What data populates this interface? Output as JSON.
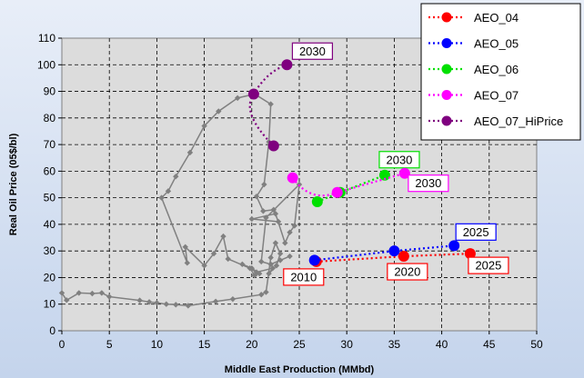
{
  "chart_data": {
    "type": "scatter",
    "title": "",
    "xlabel": "Middle East Production (MMbd)",
    "ylabel": "Real Oil Price (05$/bl)",
    "xlim": [
      0,
      50
    ],
    "ylim": [
      0,
      110
    ],
    "xticks": [
      "0",
      "5",
      "10",
      "15",
      "20",
      "25",
      "30",
      "35",
      "40",
      "45",
      "50"
    ],
    "yticks": [
      "0",
      "10",
      "20",
      "30",
      "40",
      "50",
      "60",
      "70",
      "80",
      "90",
      "100",
      "110"
    ],
    "grid": true,
    "legend_position": "top-right",
    "history": {
      "color": "#808080",
      "points": [
        [
          0.0,
          14.2
        ],
        [
          0.5,
          11.5
        ],
        [
          1.8,
          14.2
        ],
        [
          3.2,
          14.0
        ],
        [
          4.2,
          14.2
        ],
        [
          5.0,
          12.8
        ],
        [
          8.2,
          11.4
        ],
        [
          9.2,
          10.8
        ],
        [
          10.0,
          10.5
        ],
        [
          11.0,
          10.0
        ],
        [
          12.0,
          9.8
        ],
        [
          13.3,
          9.4
        ],
        [
          16.2,
          11.0
        ],
        [
          18.0,
          11.9
        ],
        [
          21.0,
          13.6
        ],
        [
          21.5,
          14.5
        ],
        [
          22.0,
          27.5
        ],
        [
          22.5,
          33.0
        ],
        [
          23.0,
          29.0
        ],
        [
          22.6,
          24.5
        ],
        [
          21.8,
          21.5
        ],
        [
          22.2,
          23.5
        ],
        [
          20.5,
          22.0
        ],
        [
          19.0,
          25.0
        ],
        [
          20.0,
          23.5
        ],
        [
          20.8,
          21.5
        ],
        [
          20.3,
          20.8
        ],
        [
          19.8,
          23.5
        ],
        [
          17.5,
          27.0
        ],
        [
          17.0,
          35.5
        ],
        [
          16.0,
          29.0
        ],
        [
          15.0,
          24.5
        ],
        [
          13.0,
          31.5
        ],
        [
          13.2,
          25.5
        ],
        [
          10.5,
          50.0
        ],
        [
          11.2,
          52.5
        ],
        [
          12.0,
          58.0
        ],
        [
          13.5,
          67.0
        ],
        [
          15.0,
          77.0
        ],
        [
          16.5,
          82.5
        ],
        [
          18.5,
          87.5
        ],
        [
          20.3,
          89.0
        ],
        [
          22.0,
          85.2
        ],
        [
          21.8,
          71.0
        ],
        [
          21.3,
          55.0
        ],
        [
          20.5,
          50.5
        ],
        [
          21.2,
          45.0
        ],
        [
          22.3,
          45.5
        ],
        [
          22.8,
          41.0
        ],
        [
          20.0,
          42.0
        ],
        [
          22.5,
          44.0
        ],
        [
          23.5,
          33.0
        ],
        [
          24.0,
          37.0
        ],
        [
          24.5,
          39.5
        ],
        [
          25.0,
          55.0
        ],
        [
          21.5,
          42.5
        ],
        [
          21.0,
          26.0
        ],
        [
          22.0,
          25.0
        ],
        [
          23.0,
          26.5
        ],
        [
          24.0,
          28.0
        ]
      ]
    },
    "series": [
      {
        "name": "AEO_04",
        "color": "#ff0000",
        "points": [
          [
            26.8,
            26.0
          ],
          [
            36.0,
            28.0
          ],
          [
            43.0,
            29.0
          ]
        ],
        "labels": [
          {
            "text": "2010",
            "at": 0
          },
          {
            "text": "2020",
            "at": 1
          },
          {
            "text": "2025",
            "at": 2
          }
        ]
      },
      {
        "name": "AEO_05",
        "color": "#0000ff",
        "points": [
          [
            26.6,
            26.5
          ],
          [
            35.0,
            30.0
          ],
          [
            41.3,
            32.0
          ]
        ],
        "labels": [
          {
            "text": "2025",
            "at": 2
          }
        ]
      },
      {
        "name": "AEO_06",
        "color": "#00e000",
        "points": [
          [
            26.9,
            48.5
          ],
          [
            29.3,
            52.0
          ],
          [
            34.0,
            58.5
          ]
        ],
        "labels": [
          {
            "text": "2030",
            "at": 2
          }
        ]
      },
      {
        "name": "AEO_07",
        "color": "#ff00ff",
        "points": [
          [
            24.3,
            57.5
          ],
          [
            29.0,
            52.0
          ],
          [
            36.1,
            59.2
          ]
        ],
        "labels": [
          {
            "text": "2030",
            "at": 2
          }
        ]
      },
      {
        "name": "AEO_07_HiPrice",
        "color": "#7f007f",
        "points": [
          [
            22.3,
            69.5
          ],
          [
            20.2,
            89.0
          ],
          [
            23.7,
            100.0
          ]
        ],
        "labels": [
          {
            "text": "2030",
            "at": 2
          }
        ]
      }
    ]
  }
}
